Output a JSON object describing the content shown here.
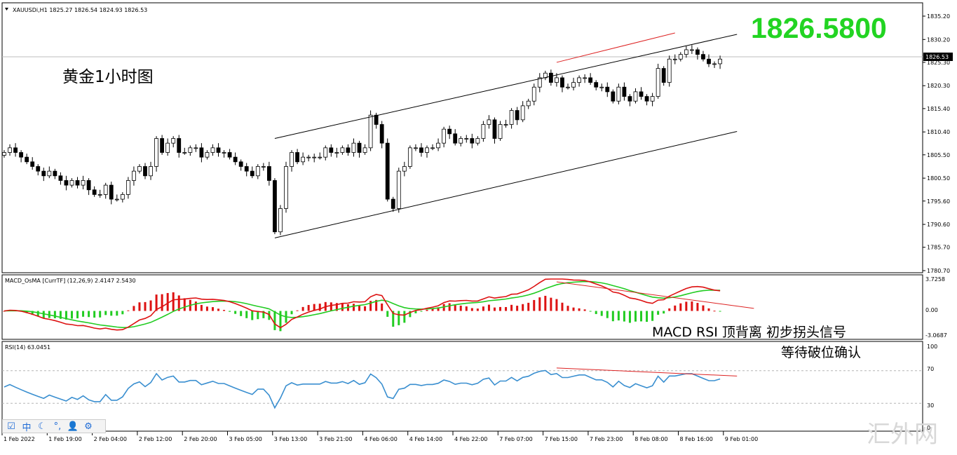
{
  "header": {
    "symbol_line": "XAUUSDi,H1  1825.27 1826.54 1824.93 1826.53"
  },
  "annotations": {
    "chart_title": "黄金1小时图",
    "big_price": "1826.5800",
    "signal_line1": "MACD  RSI  顶背离  初步拐头信号",
    "signal_line2": "等待破位确认",
    "watermark": "汇外网"
  },
  "macd_panel": {
    "label": "MACD_OsMA [CurrTF] (12,26,9) 2.4147 2.5430",
    "ticks": [
      "3.7258",
      "0.00",
      "-3.0687"
    ]
  },
  "rsi_panel": {
    "label": "RSI(14) 63.0451",
    "ticks": [
      "100",
      "70",
      "30",
      "0"
    ]
  },
  "toolbar": {
    "icons": [
      "edit-icon",
      "chinese-ime-icon",
      "moon-icon",
      "punctuation-icon",
      "user-icon",
      "gear-icon"
    ],
    "glyphs": [
      "☑",
      "中",
      "☾",
      "°,",
      "👤",
      "⚙"
    ]
  },
  "colors": {
    "bull_body": "#ffffff",
    "bear_body": "#000000",
    "macd_hist_pos": "#dd1111",
    "macd_hist_neg": "#22cc22",
    "macd_line": "#dd1111",
    "signal_line": "#22cc22",
    "rsi_line": "#3a8fd0",
    "divergence_line": "#dd2222",
    "big_price": "#22d422"
  },
  "chart_data": [
    {
      "type": "candlestick",
      "symbol": "XAUUSDi",
      "timeframe": "H1",
      "last_price": "1826.53",
      "price_ticks": [
        "1835.20",
        "1830.20",
        "1825.30",
        "1820.30",
        "1815.40",
        "1810.40",
        "1805.50",
        "1800.50",
        "1795.60",
        "1790.60",
        "1785.70",
        "1780.70"
      ],
      "time_labels": [
        "1 Feb 2022",
        "1 Feb 19:00",
        "2 Feb 04:00",
        "2 Feb 12:00",
        "2 Feb 20:00",
        "3 Feb 05:00",
        "3 Feb 13:00",
        "3 Feb 21:00",
        "4 Feb 06:00",
        "4 Feb 14:00",
        "4 Feb 22:00",
        "7 Feb 07:00",
        "7 Feb 15:00",
        "7 Feb 23:00",
        "8 Feb 08:00",
        "8 Feb 16:00",
        "9 Feb 01:00"
      ],
      "close": [
        1806,
        1807,
        1806,
        1805,
        1804,
        1803,
        1802,
        1801,
        1802,
        1801,
        1800,
        1799,
        1800,
        1799,
        1800,
        1798,
        1797,
        1797,
        1799,
        1796,
        1796,
        1797,
        1800,
        1802,
        1803,
        1801,
        1803,
        1809,
        1806,
        1808,
        1809,
        1806,
        1806,
        1807,
        1807,
        1805,
        1806,
        1807,
        1806,
        1806,
        1805,
        1804,
        1803,
        1802,
        1801,
        1803,
        1803,
        1800,
        1789,
        1794,
        1803,
        1806,
        1804,
        1805,
        1805,
        1805,
        1805,
        1807,
        1806,
        1806,
        1807,
        1806,
        1808,
        1806,
        1807,
        1814,
        1812,
        1808,
        1796,
        1794,
        1802,
        1803,
        1807,
        1807,
        1806,
        1807,
        1807,
        1808,
        1811,
        1810,
        1808,
        1809,
        1809,
        1808,
        1809,
        1812,
        1813,
        1809,
        1812,
        1812,
        1815,
        1813,
        1816,
        1817,
        1820,
        1822,
        1823,
        1821,
        1822,
        1820,
        1820,
        1821,
        1822,
        1822,
        1821,
        1820,
        1820,
        1819,
        1817,
        1820,
        1818,
        1817,
        1819,
        1818,
        1817,
        1818,
        1824,
        1821,
        1826,
        1826,
        1827,
        1828,
        1828,
        1827,
        1826,
        1825,
        1825,
        1826
      ],
      "trend_channel_upper": {
        "from": {
          "bar": 48,
          "price": 1809.0
        },
        "to": {
          "bar": 130,
          "price": 1831.3
        }
      },
      "trend_channel_lower": {
        "from": {
          "bar": 48,
          "price": 1787.7
        },
        "to": {
          "bar": 130,
          "price": 1810.5
        }
      },
      "divergence_line": {
        "from": {
          "bar": 98,
          "price": 1825.3
        },
        "to": {
          "bar": 119,
          "price": 1831.6
        }
      }
    },
    {
      "type": "line",
      "name": "MACD_OsMA [CurrTF] (12,26,9)",
      "ylim": [
        -3.0687,
        3.7258
      ],
      "series": [
        {
          "name": "MACD",
          "role": "macd"
        },
        {
          "name": "Signal",
          "role": "signal"
        },
        {
          "name": "OsMA",
          "role": "histogram"
        }
      ],
      "last_values": {
        "macd": 2.4147,
        "signal": 2.543
      }
    },
    {
      "type": "line",
      "name": "RSI(14)",
      "ylim": [
        0,
        100
      ],
      "levels": [
        30,
        70
      ],
      "last_value": 63.0451,
      "divergence_line": {
        "from": {
          "bar": 98,
          "value": 73.4
        },
        "to": {
          "bar": 130,
          "value": 63.5
        }
      }
    }
  ]
}
